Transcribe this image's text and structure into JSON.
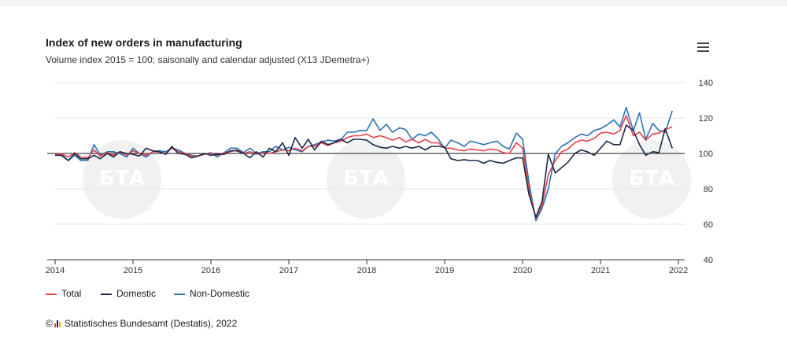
{
  "chart": {
    "title": "Index of new orders in manufacturing",
    "subtitle": "Volume index 2015 = 100; saisonally and calendar adjusted (X13 JDemetra+)",
    "menu_icon": "hamburger-menu-icon",
    "credit": "Statistisches Bundesamt (Destatis), 2022",
    "credit_prefix": "©",
    "watermark_text": "БТА"
  },
  "chart_data": {
    "type": "line",
    "xlim": [
      2014.0,
      2022.08
    ],
    "ylim": [
      40,
      140
    ],
    "yticks": [
      "40",
      "60",
      "80",
      "100",
      "120",
      "140"
    ],
    "xticks": [
      "2014",
      "2015",
      "2016",
      "2017",
      "2018",
      "2019",
      "2020",
      "2021",
      "2022"
    ],
    "reference_line": 100,
    "grid": true,
    "legend_position": "bottom-left",
    "colors": {
      "Total": "#e8414f",
      "Domestic": "#1b2a47",
      "Non-Domestic": "#2c73b5"
    },
    "series": [
      {
        "name": "Total",
        "points": [
          [
            2014.0,
            99.5
          ],
          [
            2014.08,
            99.8
          ],
          [
            2014.17,
            98
          ],
          [
            2014.25,
            100.5
          ],
          [
            2014.33,
            98
          ],
          [
            2014.42,
            97.5
          ],
          [
            2014.5,
            102
          ],
          [
            2014.58,
            98.5
          ],
          [
            2014.67,
            100.5
          ],
          [
            2014.75,
            99
          ],
          [
            2014.83,
            101
          ],
          [
            2014.92,
            99
          ],
          [
            2015.0,
            101.5
          ],
          [
            2015.08,
            100
          ],
          [
            2015.17,
            99
          ],
          [
            2015.25,
            101
          ],
          [
            2015.33,
            101
          ],
          [
            2015.42,
            100
          ],
          [
            2015.5,
            103
          ],
          [
            2015.58,
            101
          ],
          [
            2015.67,
            100
          ],
          [
            2015.75,
            98.5
          ],
          [
            2015.83,
            98.5
          ],
          [
            2015.92,
            99.5
          ],
          [
            2016.0,
            100
          ],
          [
            2016.08,
            99
          ],
          [
            2016.17,
            100.5
          ],
          [
            2016.25,
            101
          ],
          [
            2016.33,
            102
          ],
          [
            2016.42,
            100
          ],
          [
            2016.5,
            101
          ],
          [
            2016.58,
            99.5
          ],
          [
            2016.67,
            100.5
          ],
          [
            2016.75,
            100
          ],
          [
            2016.83,
            101
          ],
          [
            2016.92,
            102
          ],
          [
            2017.0,
            101.5
          ],
          [
            2017.08,
            103
          ],
          [
            2017.17,
            101.5
          ],
          [
            2017.25,
            104
          ],
          [
            2017.33,
            104
          ],
          [
            2017.42,
            106
          ],
          [
            2017.5,
            104.5
          ],
          [
            2017.58,
            106
          ],
          [
            2017.67,
            107
          ],
          [
            2017.75,
            109
          ],
          [
            2017.83,
            110
          ],
          [
            2017.92,
            110
          ],
          [
            2018.0,
            111
          ],
          [
            2018.08,
            109
          ],
          [
            2018.17,
            110
          ],
          [
            2018.25,
            109
          ],
          [
            2018.33,
            107.5
          ],
          [
            2018.42,
            109
          ],
          [
            2018.5,
            106.5
          ],
          [
            2018.58,
            108
          ],
          [
            2018.67,
            106
          ],
          [
            2018.75,
            108
          ],
          [
            2018.83,
            106
          ],
          [
            2018.92,
            106
          ],
          [
            2019.0,
            103
          ],
          [
            2019.08,
            103
          ],
          [
            2019.17,
            102
          ],
          [
            2019.25,
            101.5
          ],
          [
            2019.33,
            102.5
          ],
          [
            2019.42,
            102
          ],
          [
            2019.5,
            101.5
          ],
          [
            2019.58,
            102.5
          ],
          [
            2019.67,
            102
          ],
          [
            2019.75,
            100.5
          ],
          [
            2019.83,
            100
          ],
          [
            2019.92,
            106
          ],
          [
            2020.0,
            103
          ],
          [
            2020.08,
            80
          ],
          [
            2020.17,
            63.5
          ],
          [
            2020.25,
            70.5
          ],
          [
            2020.33,
            88
          ],
          [
            2020.42,
            96
          ],
          [
            2020.5,
            101
          ],
          [
            2020.58,
            102.5
          ],
          [
            2020.67,
            106
          ],
          [
            2020.75,
            107.5
          ],
          [
            2020.83,
            107
          ],
          [
            2020.92,
            108.5
          ],
          [
            2021.0,
            111.5
          ],
          [
            2021.08,
            112
          ],
          [
            2021.17,
            111
          ],
          [
            2021.25,
            113
          ],
          [
            2021.33,
            121.5
          ],
          [
            2021.42,
            110
          ],
          [
            2021.5,
            112
          ],
          [
            2021.58,
            107.5
          ],
          [
            2021.67,
            111
          ],
          [
            2021.75,
            111.5
          ],
          [
            2021.83,
            113.5
          ],
          [
            2021.92,
            115
          ]
        ]
      },
      {
        "name": "Domestic",
        "points": [
          [
            2014.0,
            99
          ],
          [
            2014.08,
            99
          ],
          [
            2014.17,
            96
          ],
          [
            2014.25,
            100
          ],
          [
            2014.33,
            97
          ],
          [
            2014.42,
            97
          ],
          [
            2014.5,
            99
          ],
          [
            2014.58,
            97
          ],
          [
            2014.67,
            100
          ],
          [
            2014.75,
            98
          ],
          [
            2014.83,
            101
          ],
          [
            2014.92,
            100
          ],
          [
            2015.0,
            99.5
          ],
          [
            2015.08,
            98.5
          ],
          [
            2015.17,
            103
          ],
          [
            2015.25,
            101.5
          ],
          [
            2015.33,
            101
          ],
          [
            2015.42,
            99.5
          ],
          [
            2015.5,
            104
          ],
          [
            2015.58,
            100
          ],
          [
            2015.67,
            99.5
          ],
          [
            2015.75,
            97.5
          ],
          [
            2015.83,
            98.5
          ],
          [
            2015.92,
            100
          ],
          [
            2016.0,
            99
          ],
          [
            2016.08,
            99.5
          ],
          [
            2016.17,
            99.5
          ],
          [
            2016.25,
            101.5
          ],
          [
            2016.33,
            101.5
          ],
          [
            2016.42,
            100
          ],
          [
            2016.5,
            97.5
          ],
          [
            2016.58,
            101
          ],
          [
            2016.67,
            98
          ],
          [
            2016.75,
            103
          ],
          [
            2016.83,
            101
          ],
          [
            2016.92,
            106
          ],
          [
            2017.0,
            99
          ],
          [
            2017.08,
            109
          ],
          [
            2017.17,
            103
          ],
          [
            2017.25,
            108
          ],
          [
            2017.33,
            102
          ],
          [
            2017.42,
            107
          ],
          [
            2017.5,
            105
          ],
          [
            2017.58,
            106
          ],
          [
            2017.67,
            108
          ],
          [
            2017.75,
            106
          ],
          [
            2017.83,
            108
          ],
          [
            2017.92,
            108
          ],
          [
            2018.0,
            107.5
          ],
          [
            2018.08,
            105
          ],
          [
            2018.17,
            103.5
          ],
          [
            2018.25,
            103
          ],
          [
            2018.33,
            104
          ],
          [
            2018.42,
            103
          ],
          [
            2018.5,
            104
          ],
          [
            2018.58,
            103
          ],
          [
            2018.67,
            104
          ],
          [
            2018.75,
            102
          ],
          [
            2018.83,
            104
          ],
          [
            2018.92,
            104
          ],
          [
            2019.0,
            103.5
          ],
          [
            2019.08,
            97
          ],
          [
            2019.17,
            96
          ],
          [
            2019.25,
            96.5
          ],
          [
            2019.33,
            96
          ],
          [
            2019.42,
            96
          ],
          [
            2019.5,
            94.5
          ],
          [
            2019.58,
            96
          ],
          [
            2019.67,
            95
          ],
          [
            2019.75,
            94.5
          ],
          [
            2019.83,
            96
          ],
          [
            2019.92,
            97.5
          ],
          [
            2020.0,
            97.5
          ],
          [
            2020.08,
            77
          ],
          [
            2020.17,
            64
          ],
          [
            2020.25,
            73
          ],
          [
            2020.33,
            99.5
          ],
          [
            2020.42,
            89
          ],
          [
            2020.5,
            92
          ],
          [
            2020.58,
            95
          ],
          [
            2020.67,
            100
          ],
          [
            2020.75,
            102
          ],
          [
            2020.83,
            101
          ],
          [
            2020.92,
            99
          ],
          [
            2021.0,
            103
          ],
          [
            2021.08,
            107
          ],
          [
            2021.17,
            105
          ],
          [
            2021.25,
            105
          ],
          [
            2021.33,
            116
          ],
          [
            2021.42,
            113
          ],
          [
            2021.5,
            105
          ],
          [
            2021.58,
            99
          ],
          [
            2021.67,
            101
          ],
          [
            2021.75,
            100.5
          ],
          [
            2021.83,
            114
          ],
          [
            2021.92,
            103
          ]
        ]
      },
      {
        "name": "Non-Domestic",
        "points": [
          [
            2014.0,
            99.5
          ],
          [
            2014.08,
            99.5
          ],
          [
            2014.17,
            96
          ],
          [
            2014.25,
            99
          ],
          [
            2014.33,
            96
          ],
          [
            2014.42,
            96
          ],
          [
            2014.5,
            105
          ],
          [
            2014.58,
            99
          ],
          [
            2014.67,
            101
          ],
          [
            2014.75,
            101
          ],
          [
            2014.83,
            100
          ],
          [
            2014.92,
            98
          ],
          [
            2015.0,
            103
          ],
          [
            2015.08,
            100
          ],
          [
            2015.17,
            98
          ],
          [
            2015.25,
            101
          ],
          [
            2015.33,
            101.5
          ],
          [
            2015.42,
            101
          ],
          [
            2015.5,
            103
          ],
          [
            2015.58,
            102
          ],
          [
            2015.67,
            100
          ],
          [
            2015.75,
            99
          ],
          [
            2015.83,
            98.5
          ],
          [
            2015.92,
            99.5
          ],
          [
            2016.0,
            100.5
          ],
          [
            2016.08,
            98
          ],
          [
            2016.17,
            100.5
          ],
          [
            2016.25,
            103
          ],
          [
            2016.33,
            103
          ],
          [
            2016.42,
            100.5
          ],
          [
            2016.5,
            103
          ],
          [
            2016.58,
            100
          ],
          [
            2016.67,
            101
          ],
          [
            2016.75,
            101
          ],
          [
            2016.83,
            104
          ],
          [
            2016.92,
            102
          ],
          [
            2017.0,
            103.5
          ],
          [
            2017.08,
            102
          ],
          [
            2017.17,
            101
          ],
          [
            2017.25,
            104
          ],
          [
            2017.33,
            105
          ],
          [
            2017.42,
            106.5
          ],
          [
            2017.5,
            107.5
          ],
          [
            2017.58,
            107
          ],
          [
            2017.67,
            108
          ],
          [
            2017.75,
            112
          ],
          [
            2017.83,
            112
          ],
          [
            2017.92,
            113
          ],
          [
            2018.0,
            113
          ],
          [
            2018.08,
            119.5
          ],
          [
            2018.17,
            113
          ],
          [
            2018.25,
            116.5
          ],
          [
            2018.33,
            112
          ],
          [
            2018.42,
            114.5
          ],
          [
            2018.5,
            113.5
          ],
          [
            2018.58,
            108
          ],
          [
            2018.67,
            111
          ],
          [
            2018.75,
            110
          ],
          [
            2018.83,
            112
          ],
          [
            2018.92,
            108
          ],
          [
            2019.0,
            103
          ],
          [
            2019.08,
            107.5
          ],
          [
            2019.17,
            106
          ],
          [
            2019.25,
            104
          ],
          [
            2019.33,
            107
          ],
          [
            2019.42,
            106
          ],
          [
            2019.5,
            105
          ],
          [
            2019.58,
            106
          ],
          [
            2019.67,
            107
          ],
          [
            2019.75,
            104
          ],
          [
            2019.83,
            102.5
          ],
          [
            2019.92,
            111.5
          ],
          [
            2020.0,
            108
          ],
          [
            2020.08,
            84
          ],
          [
            2020.17,
            62
          ],
          [
            2020.25,
            69
          ],
          [
            2020.33,
            80
          ],
          [
            2020.42,
            100
          ],
          [
            2020.5,
            104
          ],
          [
            2020.58,
            106
          ],
          [
            2020.67,
            109
          ],
          [
            2020.75,
            111
          ],
          [
            2020.83,
            110
          ],
          [
            2020.92,
            113
          ],
          [
            2021.0,
            114
          ],
          [
            2021.08,
            116
          ],
          [
            2021.17,
            119
          ],
          [
            2021.25,
            115
          ],
          [
            2021.33,
            126
          ],
          [
            2021.42,
            113
          ],
          [
            2021.5,
            123
          ],
          [
            2021.58,
            108
          ],
          [
            2021.67,
            117
          ],
          [
            2021.75,
            113
          ],
          [
            2021.83,
            112
          ],
          [
            2021.92,
            124
          ]
        ]
      }
    ]
  }
}
